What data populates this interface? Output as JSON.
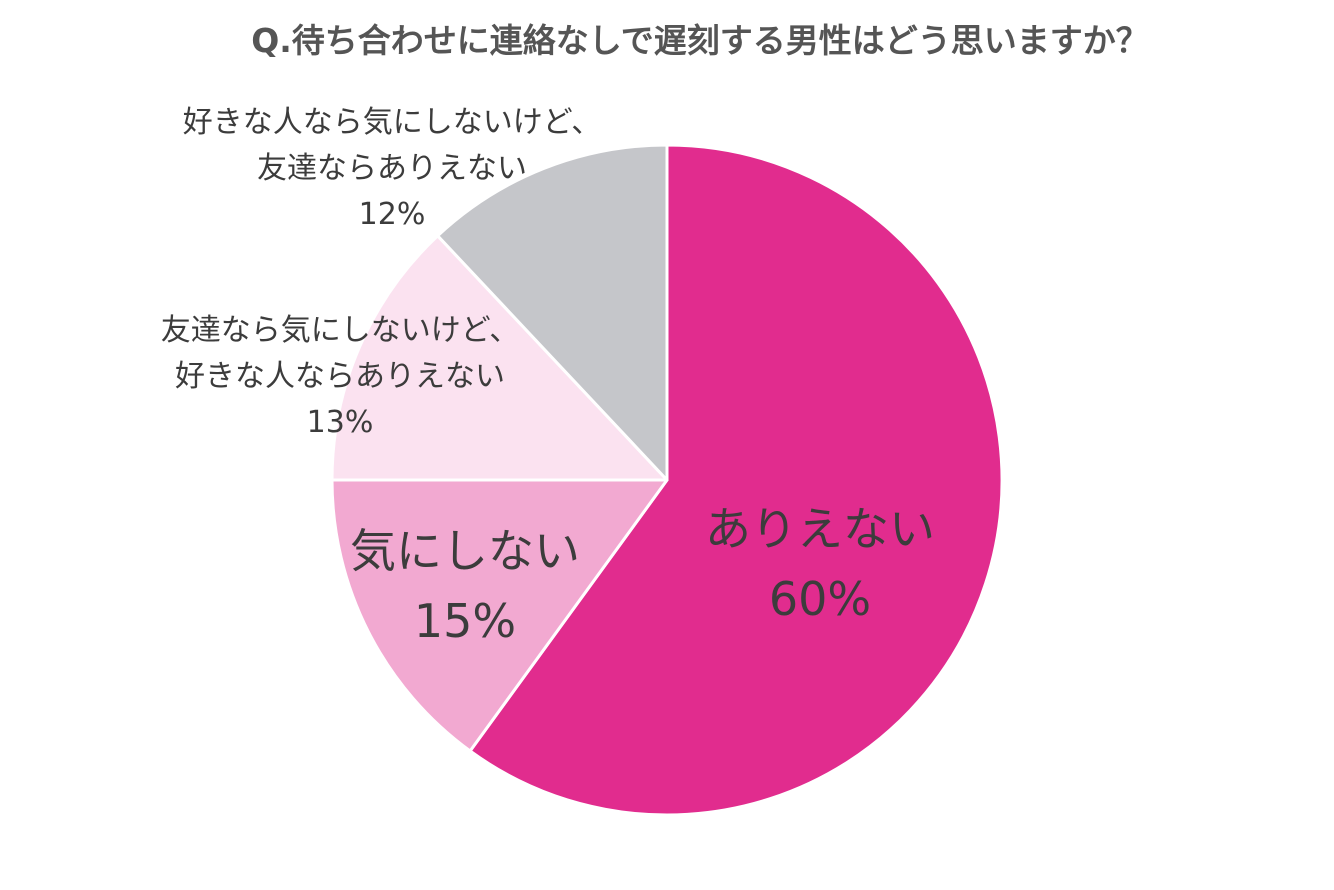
{
  "chart_data": {
    "type": "pie",
    "title": "Q.待ち合わせに連絡なしで遅刻する男性はどう思いますか？",
    "start_angle": "12 o'clock",
    "direction": "clockwise",
    "slices": [
      {
        "label_lines": [
          "ありえない"
        ],
        "value": 60,
        "value_text": "60%",
        "color": "#e12c8e"
      },
      {
        "label_lines": [
          "気にしない"
        ],
        "value": 15,
        "value_text": "15%",
        "color": "#f2a9d1"
      },
      {
        "label_lines": [
          "友達なら気にしないけど、",
          "好きな人ならありえない"
        ],
        "value": 13,
        "value_text": "13%",
        "color": "#fbe2f0"
      },
      {
        "label_lines": [
          "好きな人なら気にしないけど、",
          "友達ならありえない"
        ],
        "value": 12,
        "value_text": "12%",
        "color": "#c5c6ca"
      }
    ]
  }
}
